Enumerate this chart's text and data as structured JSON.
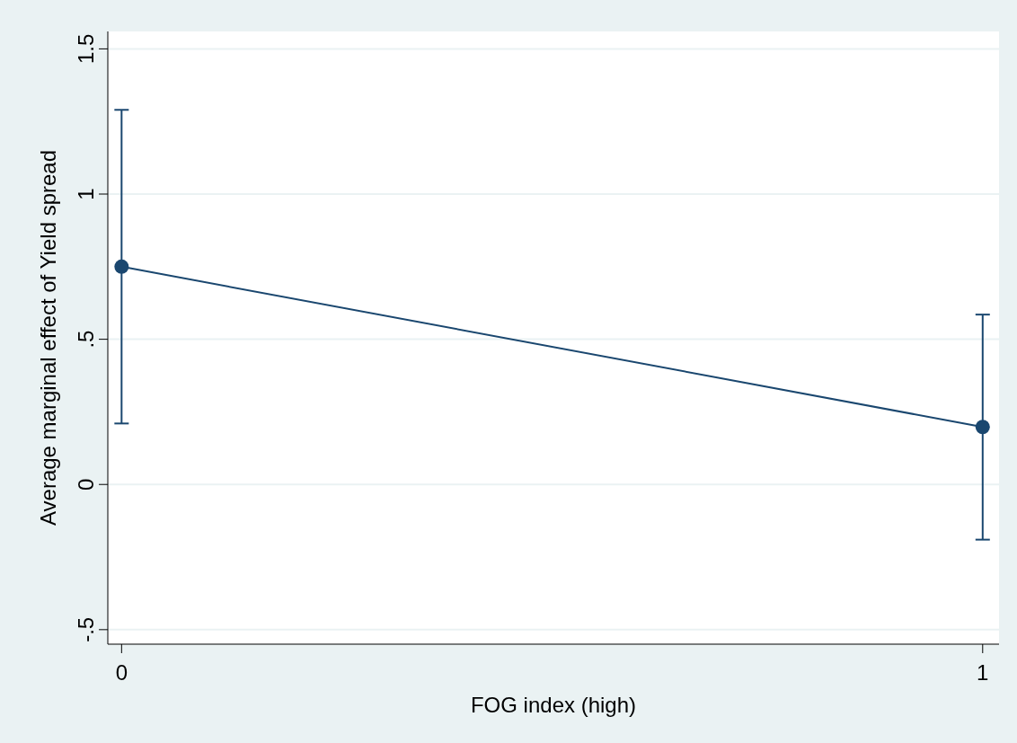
{
  "chart_data": {
    "type": "line",
    "xlabel": "FOG index (high)",
    "ylabel": "Average marginal effect of Yield spread",
    "x": [
      0,
      1
    ],
    "series": [
      {
        "color": "#1a476f",
        "values": [
          0.75,
          0.198
        ],
        "errors": [
          [
            0.21,
            1.29
          ],
          [
            -0.19,
            0.585
          ]
        ]
      }
    ],
    "xlim": [
      -0.016,
      1.019
    ],
    "xticks": [
      0,
      1
    ],
    "ylim": [
      -0.55,
      1.56
    ],
    "yticks": [
      {
        "value": -0.5,
        "label": "-.5"
      },
      0,
      {
        "value": 0.5,
        "label": ".5"
      },
      1,
      1.5
    ],
    "grid": "y",
    "marker": "circle",
    "line_style": "solid"
  }
}
